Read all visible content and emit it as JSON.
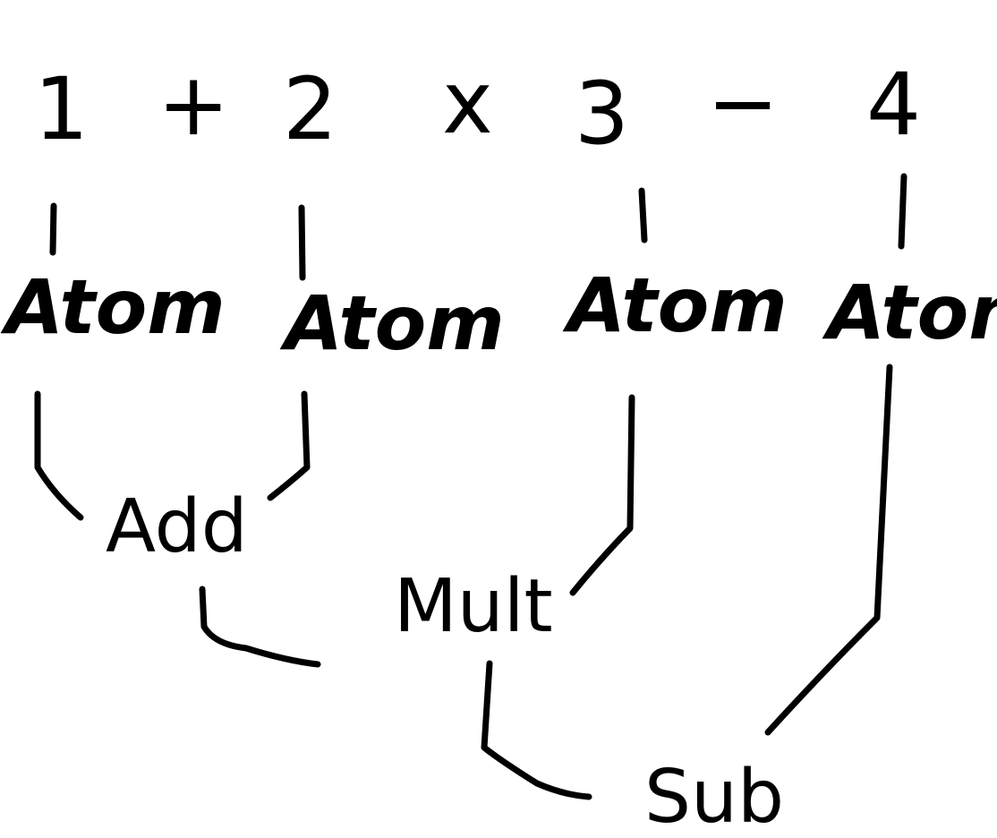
{
  "expression": {
    "tokens": [
      "1",
      "+",
      "2",
      "x",
      "3",
      "−",
      "4"
    ]
  },
  "tree": {
    "atoms": [
      "Atom",
      "Atom",
      "Atom",
      "Atom"
    ],
    "add": "Add",
    "mult": "Mult",
    "sub": "Sub"
  },
  "colors": {
    "ink": "#000000",
    "background": "#ffffff"
  }
}
